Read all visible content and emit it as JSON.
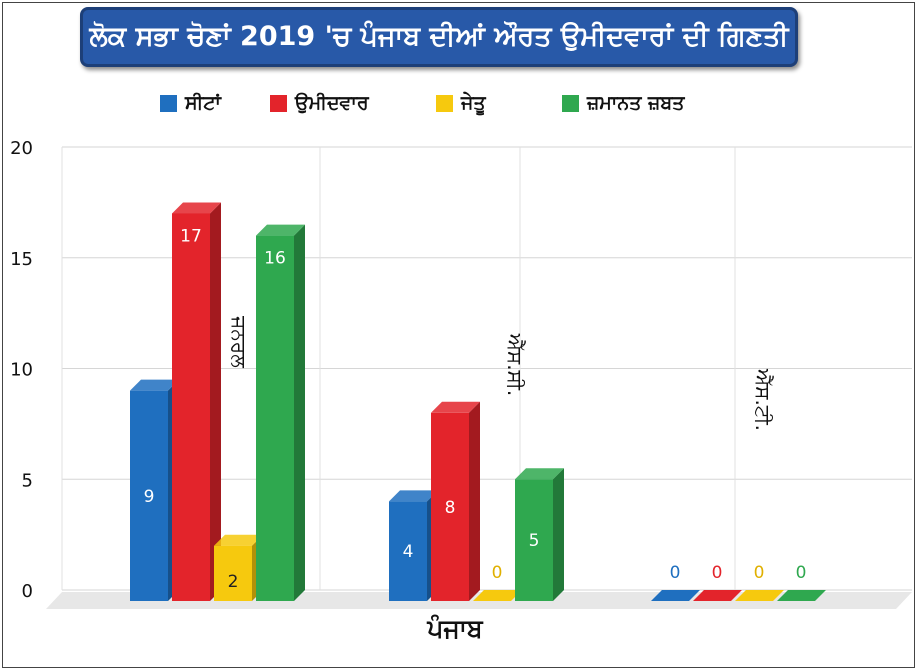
{
  "title": "ਲੋਕ ਸਭਾ ਚੋਣਾਂ 2019 'ਚ ਪੰਜਾਬ ਦੀਆਂ ਔਰਤ ਉਮੀਦਵਾਰਾਂ ਦੀ ਗਿਣਤੀ",
  "chart_data": {
    "type": "bar",
    "title": "ਲੋਕ ਸਭਾ ਚੋਣਾਂ 2019 'ਚ ਪੰਜਾਬ ਦੀਆਂ ਔਰਤ ਉਮੀਦਵਾਰਾਂ ਦੀ ਗਿਣਤੀ",
    "xlabel": "ਪੰਜਾਬ",
    "ylabel": "",
    "categories": [
      "ਜਨਰਲ",
      "ਐੱਸ.ਸੀ.",
      "ਐੱਸ.ਟੀ."
    ],
    "ylim": [
      0,
      20
    ],
    "yticks": [
      0,
      5,
      10,
      15,
      20
    ],
    "grid": true,
    "legend_position": "top",
    "series": [
      {
        "name": "ਸੀਟਾਂ",
        "color": "#1f6fbf",
        "values": [
          9,
          4,
          0
        ]
      },
      {
        "name": "ਉਮੀਦਵਾਰ",
        "color": "#e3242b",
        "values": [
          17,
          8,
          0
        ]
      },
      {
        "name": "ਜੇਤੂ",
        "color": "#f6c90e",
        "values": [
          2,
          0,
          0
        ]
      },
      {
        "name": "ਜ਼ਮਾਨਤ ਜ਼ਬਤ",
        "color": "#2fa84f",
        "values": [
          16,
          5,
          0
        ]
      }
    ]
  }
}
